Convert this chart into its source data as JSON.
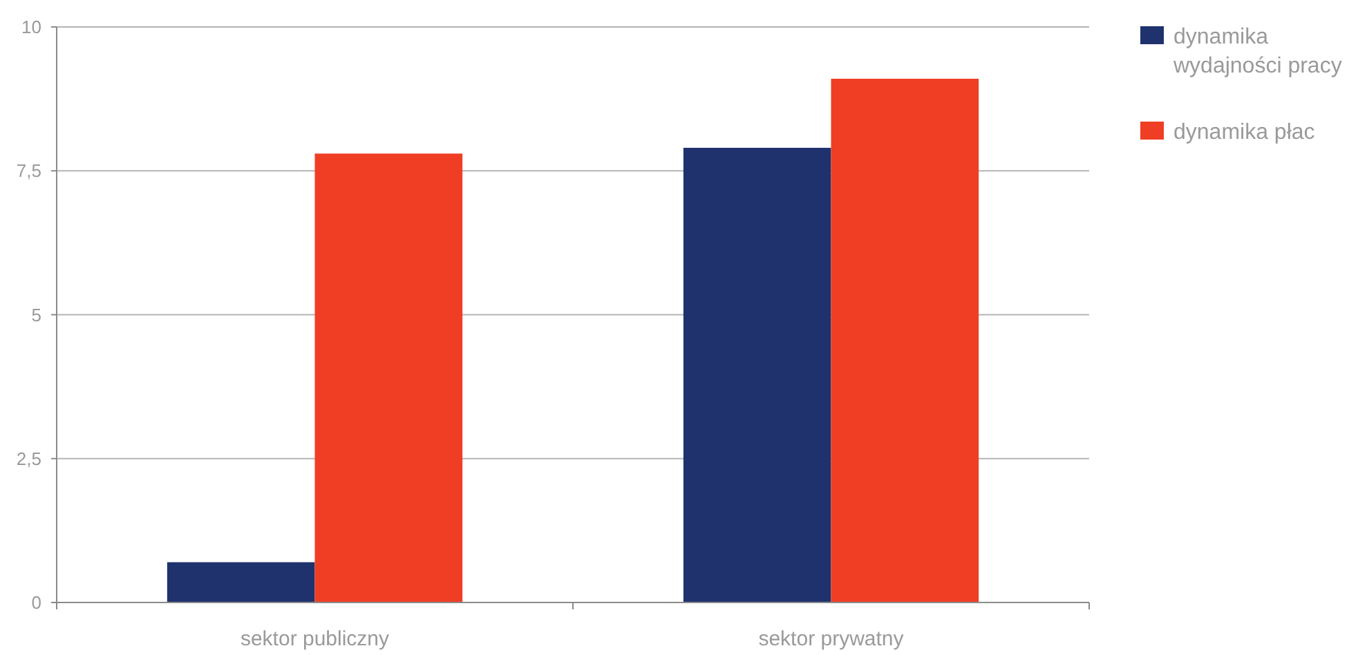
{
  "chart_data": {
    "type": "bar",
    "categories": [
      "sektor publiczny",
      "sektor prywatny"
    ],
    "series": [
      {
        "name": "dynamika wydajności pracy",
        "color": "#1f326e",
        "values": [
          0.7,
          7.9
        ]
      },
      {
        "name": "dynamika płac",
        "color": "#ef3e24",
        "values": [
          7.8,
          9.1
        ]
      }
    ],
    "ylim": [
      0,
      10
    ],
    "yticks": [
      0,
      {
        "value": 2.5,
        "label": "2,5"
      },
      5,
      {
        "value": 7.5,
        "label": "7,5"
      },
      10
    ],
    "grid": "y",
    "legend": "top right"
  }
}
